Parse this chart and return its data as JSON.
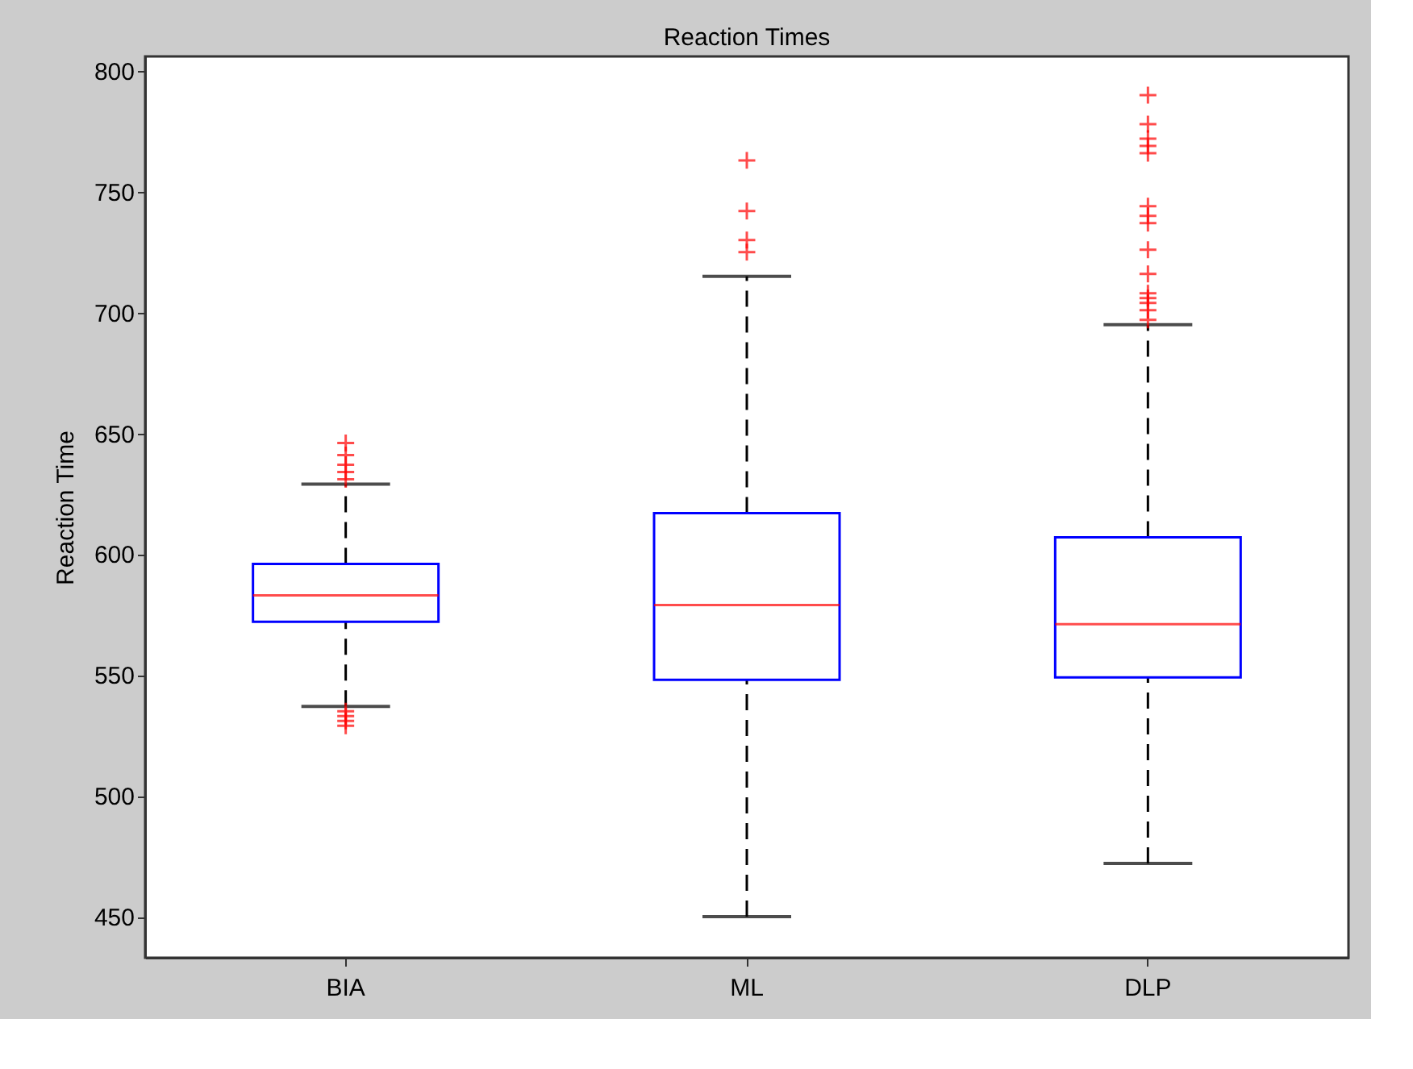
{
  "chart_data": {
    "type": "box",
    "title": "Reaction Times",
    "ylabel": "Reaction Time",
    "categories": [
      "BIA",
      "ML",
      "DLP"
    ],
    "boxes": [
      {
        "low": 537,
        "q1": 572,
        "median": 583,
        "q3": 596,
        "high": 629,
        "outliers": [
          646,
          641,
          637,
          634,
          631,
          535,
          533,
          531,
          529
        ]
      },
      {
        "low": 450,
        "q1": 548,
        "median": 579,
        "q3": 617,
        "high": 715,
        "outliers": [
          763,
          742,
          730,
          725
        ]
      },
      {
        "low": 472,
        "q1": 549,
        "median": 571,
        "q3": 607,
        "high": 695,
        "outliers": [
          790,
          778,
          772,
          769,
          766,
          744,
          740,
          737,
          726,
          716,
          708,
          706,
          704,
          701,
          697
        ]
      }
    ],
    "ylim": [
      433,
      806
    ],
    "yticks": [
      450,
      500,
      550,
      600,
      650,
      700,
      750,
      800
    ],
    "grid": false,
    "marker": "cross",
    "line_style": "dashed"
  }
}
